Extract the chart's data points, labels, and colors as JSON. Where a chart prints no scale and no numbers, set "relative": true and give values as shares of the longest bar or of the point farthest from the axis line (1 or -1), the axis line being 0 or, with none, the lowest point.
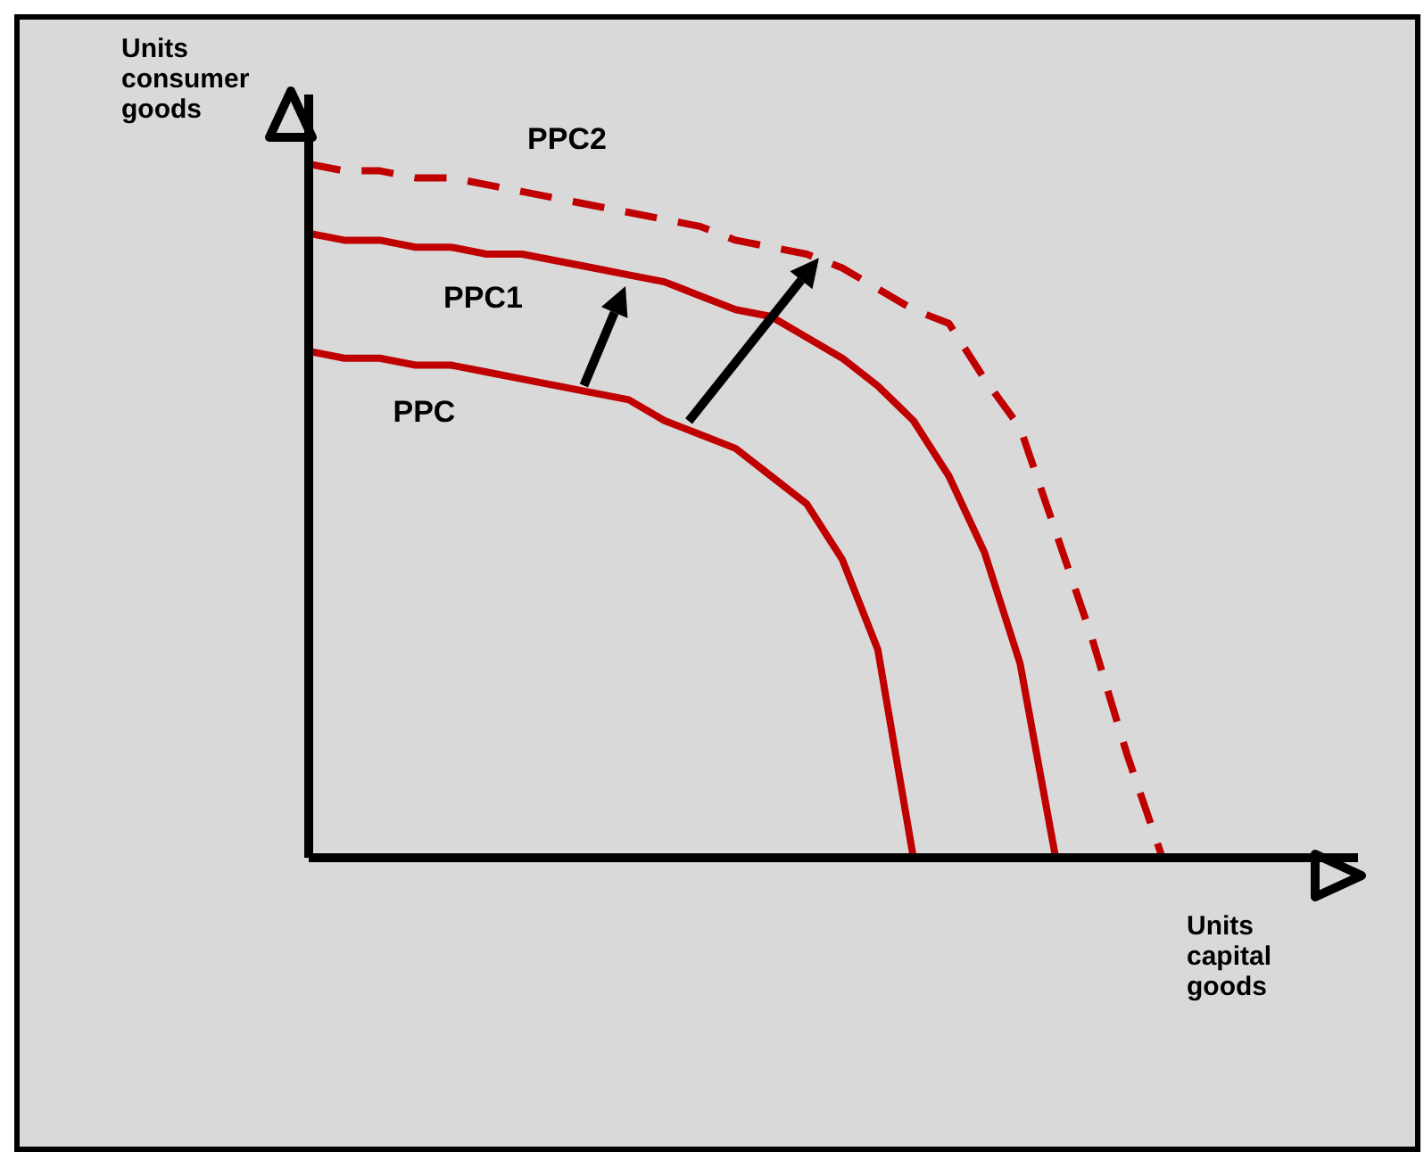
{
  "chart_data": {
    "type": "line",
    "relative": true,
    "xlabel": "Units capital goods",
    "ylabel": "Units consumer goods",
    "legend": false,
    "grid": false,
    "marker": "none",
    "categories": [
      null,
      null,
      null,
      null,
      null,
      null,
      null,
      null,
      null,
      null,
      null,
      null,
      null,
      null,
      null,
      null,
      null,
      null,
      null,
      null,
      null,
      null,
      null,
      null,
      null,
      null,
      null,
      null,
      null,
      null
    ],
    "series": [
      {
        "name": "PPC",
        "color": "#c00000",
        "line_style": "solid",
        "values": [
          0.73,
          0.72,
          0.72,
          0.71,
          0.71,
          0.7,
          0.69,
          0.68,
          0.67,
          0.66,
          0.63,
          0.61,
          0.59,
          0.55,
          0.51,
          0.43,
          0.3,
          0,
          null,
          null,
          null,
          null,
          null,
          null,
          null,
          null,
          null,
          null,
          null,
          null
        ]
      },
      {
        "name": "PPC1",
        "color": "#c00000",
        "line_style": "solid",
        "values": [
          0.9,
          0.89,
          0.89,
          0.88,
          0.88,
          0.87,
          0.87,
          0.86,
          0.85,
          0.84,
          0.83,
          0.81,
          0.79,
          0.78,
          0.75,
          0.72,
          0.68,
          0.63,
          0.55,
          0.44,
          0.28,
          0,
          null,
          null,
          null,
          null,
          null,
          null,
          null,
          null
        ]
      },
      {
        "name": "PPC2",
        "color": "#c00000",
        "line_style": "dashed",
        "values": [
          1,
          0.99,
          0.99,
          0.98,
          0.98,
          0.97,
          0.96,
          0.95,
          0.94,
          0.93,
          0.92,
          0.91,
          0.89,
          0.88,
          0.87,
          0.85,
          0.82,
          0.79,
          0.77,
          0.69,
          0.62,
          0.47,
          0.32,
          0.15,
          0,
          null,
          null,
          null,
          null,
          null
        ]
      }
    ]
  }
}
